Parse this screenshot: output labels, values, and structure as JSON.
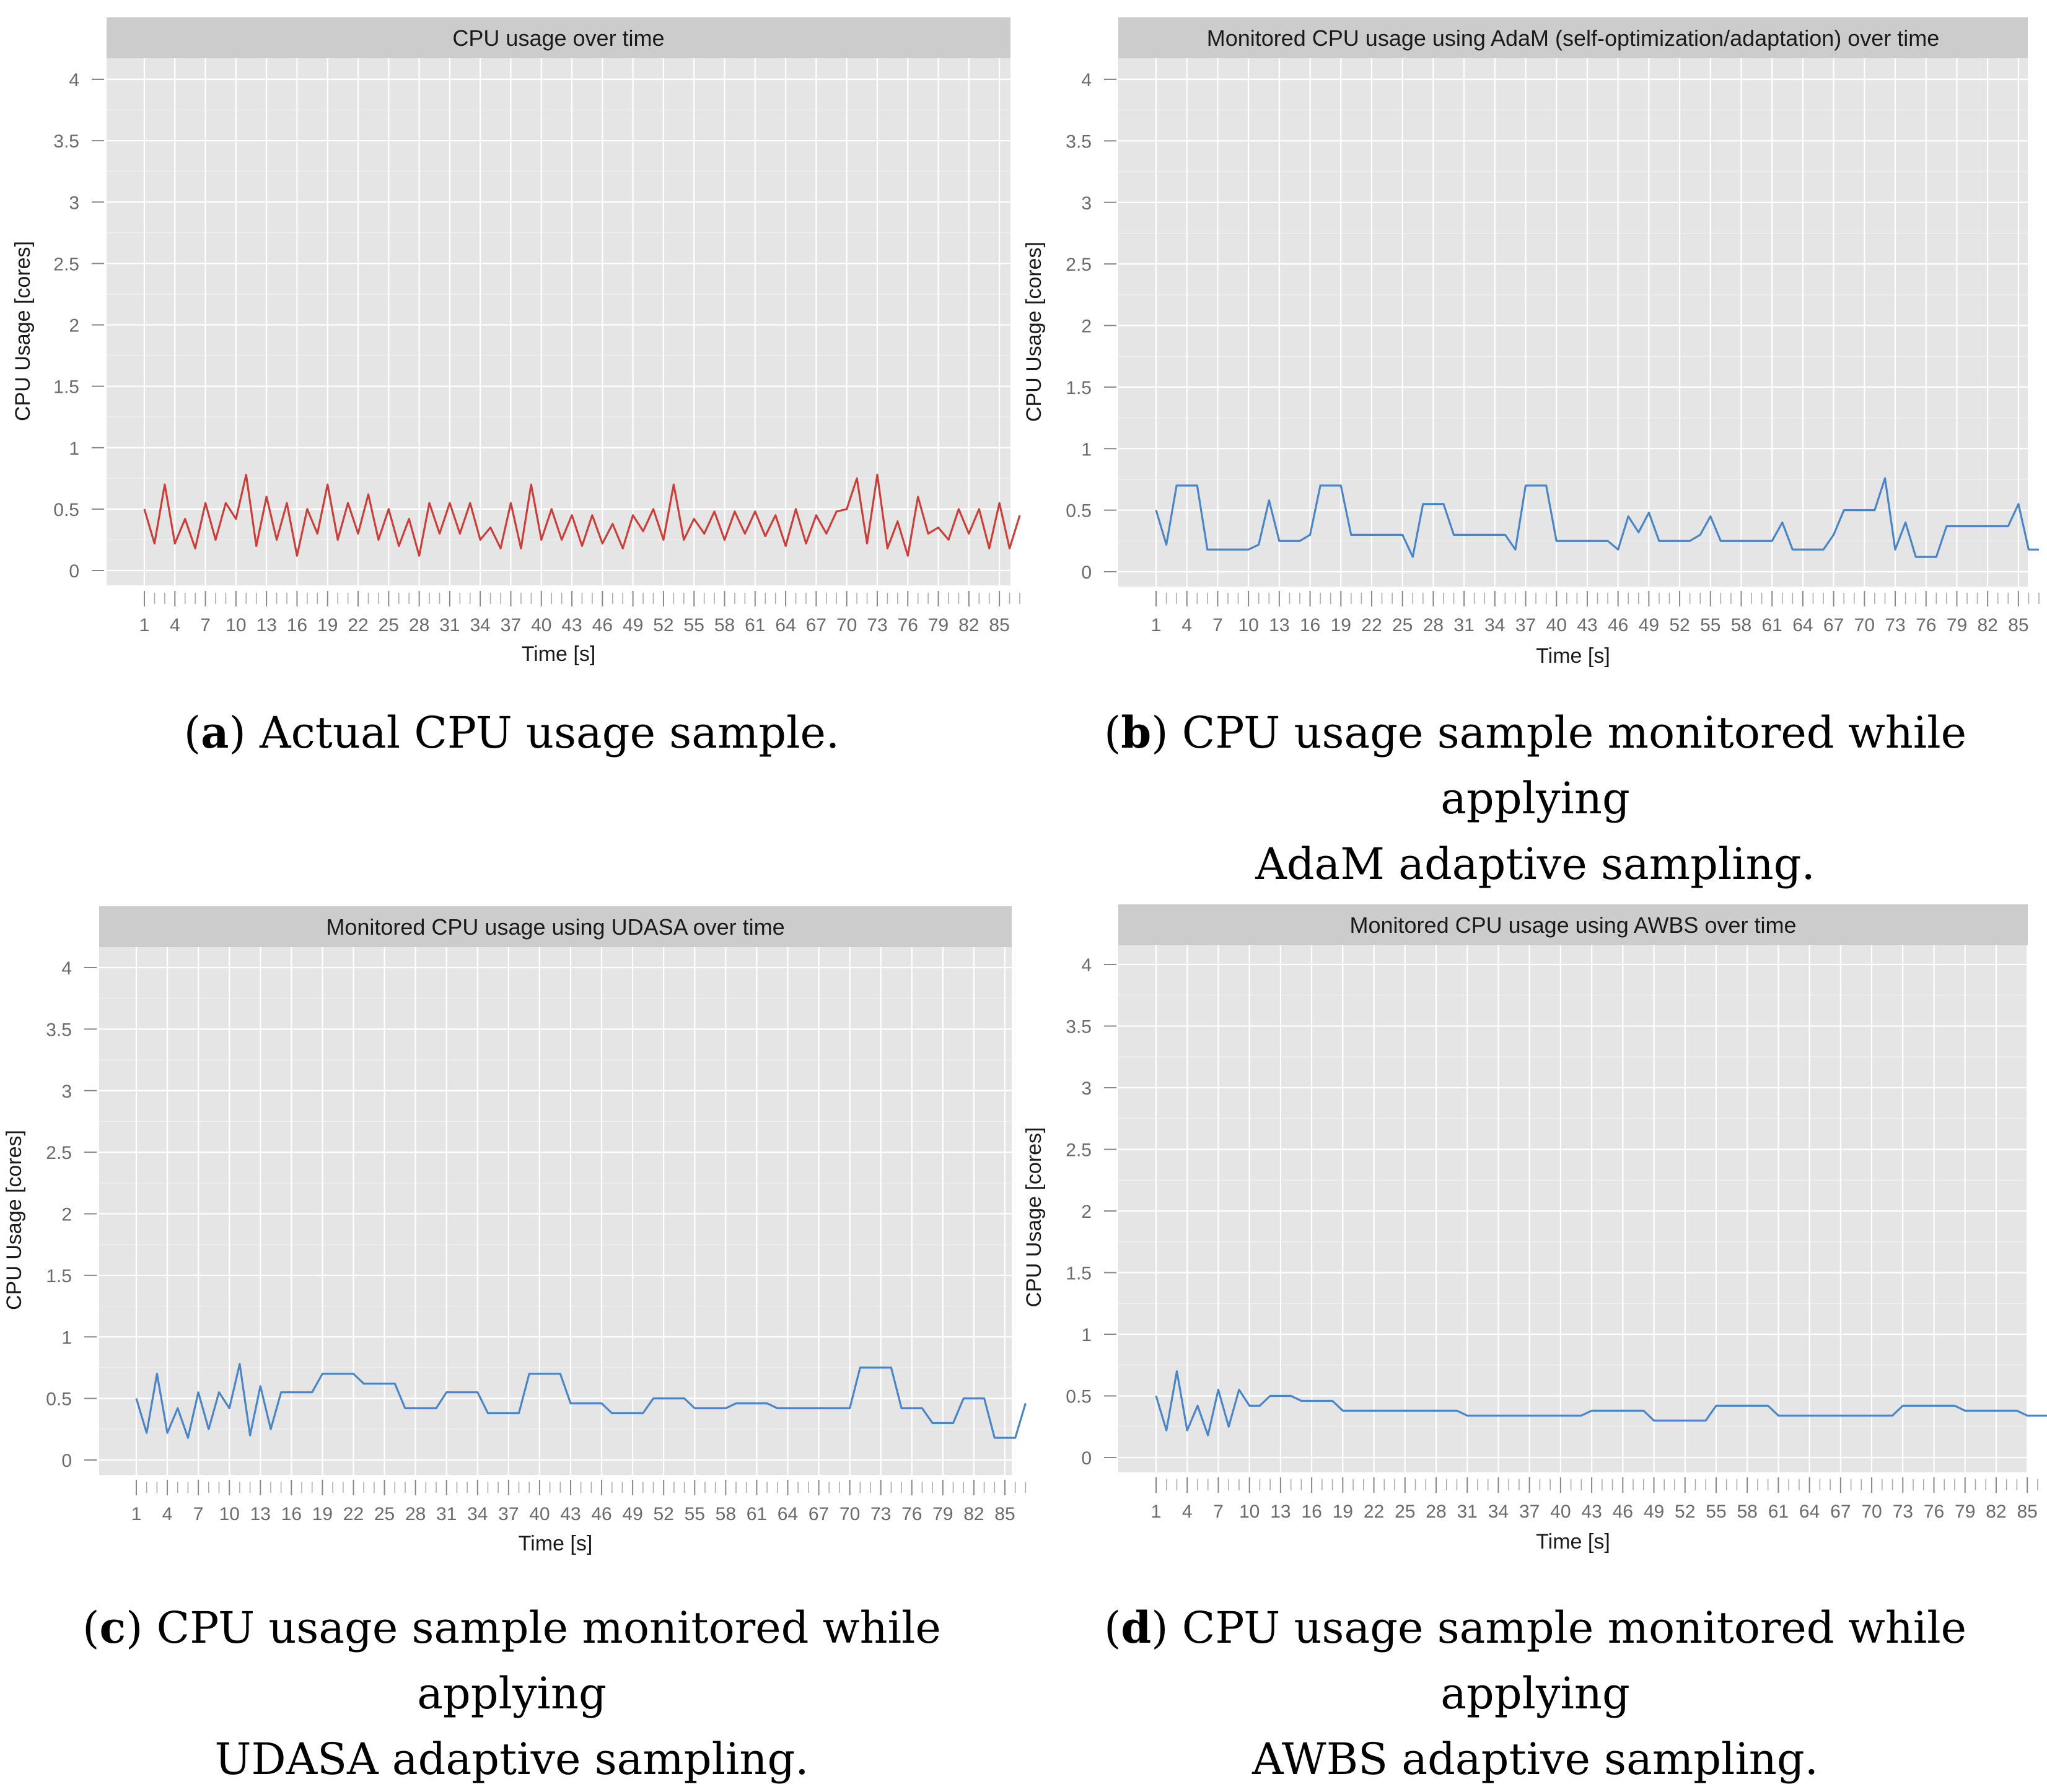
{
  "chart_data": [
    {
      "type": "line",
      "title": "CPU usage over time",
      "xlabel": "Time [s]",
      "ylabel": "CPU Usage [cores]",
      "ylim": [
        0,
        4
      ],
      "yticks": [
        "0",
        "0.5",
        "1",
        "1.5",
        "2",
        "2.5",
        "3",
        "3.5",
        "4"
      ],
      "xticks": [
        "1",
        "4",
        "7",
        "10",
        "13",
        "16",
        "19",
        "22",
        "25",
        "28",
        "31",
        "34",
        "37",
        "40",
        "43",
        "46",
        "49",
        "52",
        "55",
        "58",
        "61",
        "64",
        "67",
        "70",
        "73",
        "76",
        "79",
        "82",
        "85"
      ],
      "grid": true,
      "color": "#C9403A",
      "y": [
        0.5,
        0.22,
        0.7,
        0.22,
        0.42,
        0.18,
        0.55,
        0.25,
        0.55,
        0.42,
        0.78,
        0.2,
        0.6,
        0.25,
        0.55,
        0.12,
        0.5,
        0.3,
        0.7,
        0.25,
        0.55,
        0.3,
        0.62,
        0.25,
        0.5,
        0.2,
        0.42,
        0.12,
        0.55,
        0.3,
        0.55,
        0.3,
        0.55,
        0.25,
        0.35,
        0.18,
        0.55,
        0.18,
        0.7,
        0.25,
        0.5,
        0.25,
        0.45,
        0.2,
        0.45,
        0.22,
        0.38,
        0.18,
        0.45,
        0.32,
        0.5,
        0.25,
        0.7,
        0.25,
        0.42,
        0.3,
        0.48,
        0.25,
        0.48,
        0.3,
        0.48,
        0.28,
        0.45,
        0.2,
        0.5,
        0.22,
        0.45,
        0.3,
        0.48,
        0.5,
        0.75,
        0.22,
        0.78,
        0.18,
        0.4,
        0.12,
        0.6,
        0.3,
        0.35,
        0.25,
        0.5,
        0.3,
        0.5,
        0.18,
        0.55,
        0.18,
        0.45
      ]
    },
    {
      "type": "line",
      "title": "Monitored CPU usage using AdaM (self-optimization/adaptation) over time",
      "xlabel": "Time [s]",
      "ylabel": "CPU Usage [cores]",
      "ylim": [
        0,
        4
      ],
      "yticks": [
        "0",
        "0.5",
        "1",
        "1.5",
        "2",
        "2.5",
        "3",
        "3.5",
        "4"
      ],
      "xticks": [
        "1",
        "4",
        "7",
        "10",
        "13",
        "16",
        "19",
        "22",
        "25",
        "28",
        "31",
        "34",
        "37",
        "40",
        "43",
        "46",
        "49",
        "52",
        "55",
        "58",
        "61",
        "64",
        "67",
        "70",
        "73",
        "76",
        "79",
        "82",
        "85"
      ],
      "grid": true,
      "color": "#4A86C5",
      "y": [
        0.5,
        0.22,
        0.7,
        0.7,
        0.7,
        0.18,
        0.18,
        0.18,
        0.18,
        0.18,
        0.22,
        0.58,
        0.25,
        0.25,
        0.25,
        0.3,
        0.7,
        0.7,
        0.7,
        0.3,
        0.3,
        0.3,
        0.3,
        0.3,
        0.3,
        0.12,
        0.55,
        0.55,
        0.55,
        0.3,
        0.3,
        0.3,
        0.3,
        0.3,
        0.3,
        0.18,
        0.7,
        0.7,
        0.7,
        0.25,
        0.25,
        0.25,
        0.25,
        0.25,
        0.25,
        0.18,
        0.45,
        0.32,
        0.48,
        0.25,
        0.25,
        0.25,
        0.25,
        0.3,
        0.45,
        0.25,
        0.25,
        0.25,
        0.25,
        0.25,
        0.25,
        0.4,
        0.18,
        0.18,
        0.18,
        0.18,
        0.3,
        0.5,
        0.5,
        0.5,
        0.5,
        0.76,
        0.18,
        0.4,
        0.12,
        0.12,
        0.12,
        0.37,
        0.37,
        0.37,
        0.37,
        0.37,
        0.37,
        0.37,
        0.55,
        0.18,
        0.18
      ]
    },
    {
      "type": "line",
      "title": "Monitored CPU usage using UDASA over time",
      "xlabel": "Time [s]",
      "ylabel": "CPU Usage [cores]",
      "ylim": [
        0,
        4
      ],
      "yticks": [
        "0",
        "0.5",
        "1",
        "1.5",
        "2",
        "2.5",
        "3",
        "3.5",
        "4"
      ],
      "xticks": [
        "1",
        "4",
        "7",
        "10",
        "13",
        "16",
        "19",
        "22",
        "25",
        "28",
        "31",
        "34",
        "37",
        "40",
        "43",
        "46",
        "49",
        "52",
        "55",
        "58",
        "61",
        "64",
        "67",
        "70",
        "73",
        "76",
        "79",
        "82",
        "85"
      ],
      "grid": true,
      "color": "#4A86C5",
      "y": [
        0.5,
        0.22,
        0.7,
        0.22,
        0.42,
        0.18,
        0.55,
        0.25,
        0.55,
        0.42,
        0.78,
        0.2,
        0.6,
        0.25,
        0.55,
        0.55,
        0.55,
        0.55,
        0.7,
        0.7,
        0.7,
        0.7,
        0.62,
        0.62,
        0.62,
        0.62,
        0.42,
        0.42,
        0.42,
        0.42,
        0.55,
        0.55,
        0.55,
        0.55,
        0.38,
        0.38,
        0.38,
        0.38,
        0.7,
        0.7,
        0.7,
        0.7,
        0.46,
        0.46,
        0.46,
        0.46,
        0.38,
        0.38,
        0.38,
        0.38,
        0.5,
        0.5,
        0.5,
        0.5,
        0.42,
        0.42,
        0.42,
        0.42,
        0.46,
        0.46,
        0.46,
        0.46,
        0.42,
        0.42,
        0.42,
        0.42,
        0.42,
        0.42,
        0.42,
        0.42,
        0.75,
        0.75,
        0.75,
        0.75,
        0.42,
        0.42,
        0.42,
        0.3,
        0.3,
        0.3,
        0.5,
        0.5,
        0.5,
        0.18,
        0.18,
        0.18,
        0.46
      ]
    },
    {
      "type": "line",
      "title": "Monitored CPU usage using AWBS over time",
      "xlabel": "Time [s]",
      "ylabel": "CPU Usage [cores]",
      "ylim": [
        0,
        4
      ],
      "yticks": [
        "0",
        "0.5",
        "1",
        "1.5",
        "2",
        "2.5",
        "3",
        "3.5",
        "4"
      ],
      "xticks": [
        "1",
        "4",
        "7",
        "10",
        "13",
        "16",
        "19",
        "22",
        "25",
        "28",
        "31",
        "34",
        "37",
        "40",
        "43",
        "46",
        "49",
        "52",
        "55",
        "58",
        "61",
        "64",
        "67",
        "70",
        "73",
        "76",
        "79",
        "82",
        "85"
      ],
      "grid": true,
      "color": "#4A86C5",
      "y": [
        0.5,
        0.22,
        0.7,
        0.22,
        0.42,
        0.18,
        0.55,
        0.25,
        0.55,
        0.42,
        0.42,
        0.5,
        0.5,
        0.5,
        0.46,
        0.46,
        0.46,
        0.46,
        0.38,
        0.38,
        0.38,
        0.38,
        0.38,
        0.38,
        0.38,
        0.38,
        0.38,
        0.38,
        0.38,
        0.38,
        0.34,
        0.34,
        0.34,
        0.34,
        0.34,
        0.34,
        0.34,
        0.34,
        0.34,
        0.34,
        0.34,
        0.34,
        0.38,
        0.38,
        0.38,
        0.38,
        0.38,
        0.38,
        0.3,
        0.3,
        0.3,
        0.3,
        0.3,
        0.3,
        0.42,
        0.42,
        0.42,
        0.42,
        0.42,
        0.42,
        0.34,
        0.34,
        0.34,
        0.34,
        0.34,
        0.34,
        0.34,
        0.34,
        0.34,
        0.34,
        0.34,
        0.34,
        0.42,
        0.42,
        0.42,
        0.42,
        0.42,
        0.42,
        0.38,
        0.38,
        0.38,
        0.38,
        0.38,
        0.38,
        0.34,
        0.34,
        0.34
      ]
    }
  ],
  "captions": [
    {
      "letter": "a",
      "line1": ") Actual CPU usage sample.",
      "line2": ""
    },
    {
      "letter": "b",
      "line1": ") CPU usage sample monitored while applying",
      "line2": "AdaM adaptive sampling."
    },
    {
      "letter": "c",
      "line1": ") CPU usage sample monitored while applying",
      "line2": "UDASA adaptive sampling."
    },
    {
      "letter": "d",
      "line1": ") CPU usage sample monitored while applying",
      "line2": "AWBS adaptive sampling."
    }
  ]
}
